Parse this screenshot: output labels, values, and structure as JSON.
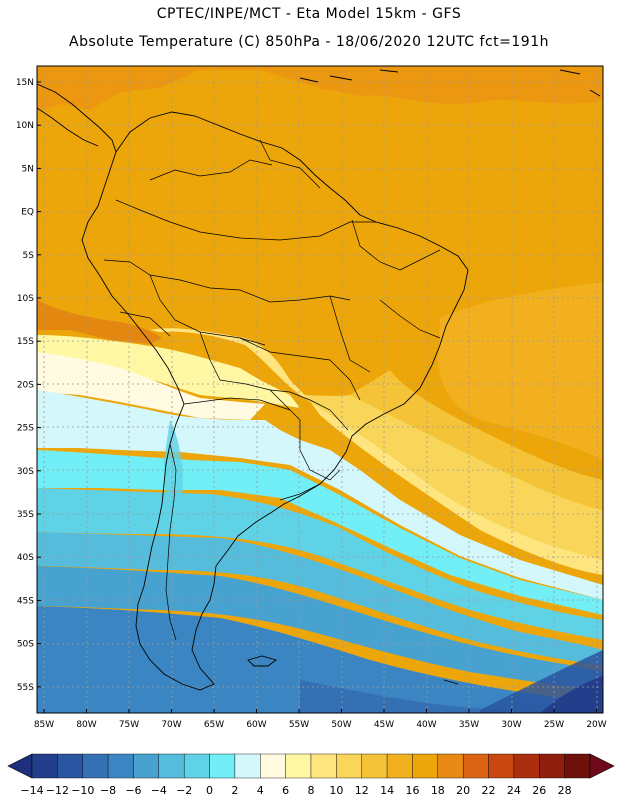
{
  "header": {
    "line1": "CPTEC/INPE/MCT -  Eta Model 15km - GFS",
    "line2": "Absolute Temperature (C) 850hPa - 18/06/2020 12UTC fct=191h"
  },
  "map": {
    "lat_labels": [
      "15N",
      "10N",
      "5N",
      "EQ",
      "5S",
      "10S",
      "15S",
      "20S",
      "25S",
      "30S",
      "35S",
      "40S",
      "45S",
      "50S",
      "55S"
    ],
    "lon_labels": [
      "85W",
      "80W",
      "75W",
      "70W",
      "65W",
      "60W",
      "55W",
      "50W",
      "45W",
      "40W",
      "35W",
      "30W",
      "25W",
      "20W"
    ],
    "colors": {
      "ocean_warm": "#eda60a",
      "land_warm": "#f0a80c",
      "outline": "#000000",
      "grid": "#9a9a9a"
    }
  },
  "colorbar": {
    "labels": [
      "-14",
      "-12",
      "-10",
      "-8",
      "-6",
      "-4",
      "-2",
      "0",
      "2",
      "4",
      "6",
      "8",
      "10",
      "12",
      "14",
      "16",
      "18",
      "20",
      "22",
      "24",
      "26",
      "28"
    ],
    "colors": [
      "#233e8a",
      "#2a55a0",
      "#3470b3",
      "#3b86c2",
      "#47a2d0",
      "#56bcdc",
      "#5fd2e6",
      "#72eef6",
      "#d3f7fb",
      "#fffae0",
      "#fff7a3",
      "#ffe580",
      "#f9d55a",
      "#f5c338",
      "#f2b01f",
      "#eda60a",
      "#e98a16",
      "#dc6515",
      "#c94812",
      "#ab2e0f",
      "#8e1e0e",
      "#6e110a"
    ],
    "left_arrow_color": "#1e2f80",
    "right_arrow_color": "#6e0a1a"
  }
}
